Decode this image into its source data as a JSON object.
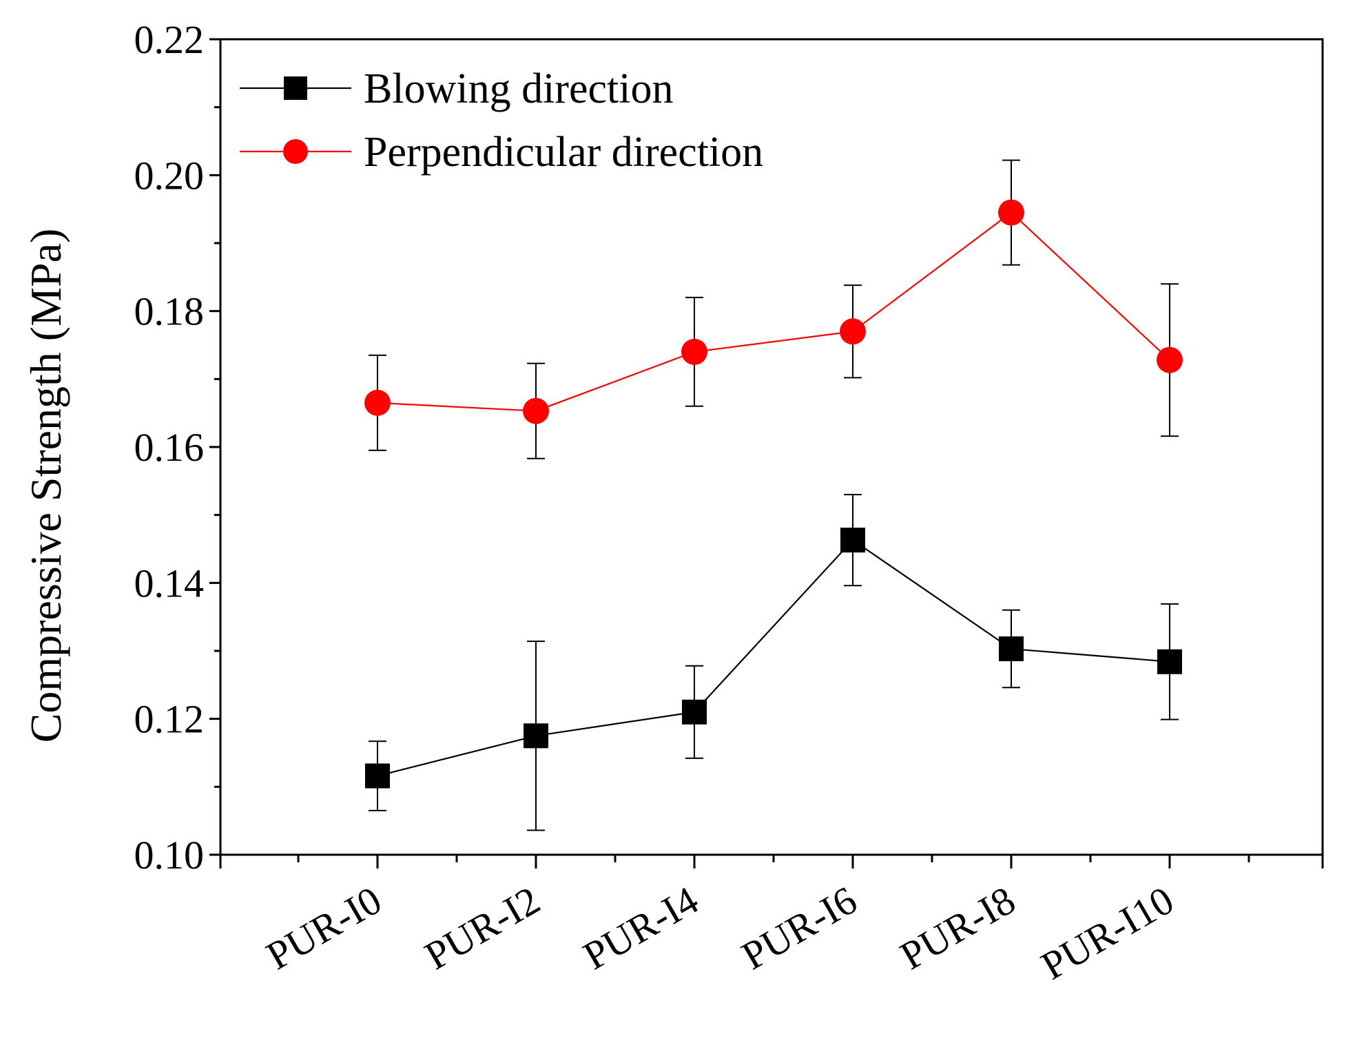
{
  "chart_data": {
    "type": "line",
    "ylabel": "Compressive Strength (MPa)",
    "xlabel": "",
    "categories": [
      "PUR-I0",
      "PUR-I2",
      "PUR-I4",
      "PUR-I6",
      "PUR-I8",
      "PUR-I10"
    ],
    "ylim": [
      0.1,
      0.22
    ],
    "y_ticks": [
      "0.10",
      "0.12",
      "0.14",
      "0.16",
      "0.18",
      "0.20",
      "0.22"
    ],
    "grid": false,
    "legend_position": "top-left",
    "series": [
      {
        "name": "Blowing direction",
        "color": "#000000",
        "marker": "square",
        "values": [
          0.1116,
          0.1175,
          0.121,
          0.1463,
          0.1303,
          0.1284
        ],
        "error": [
          0.0051,
          0.0139,
          0.0068,
          0.0067,
          0.0057,
          0.0085
        ]
      },
      {
        "name": "Perpendicular direction",
        "color": "#ff0000",
        "marker": "circle",
        "values": [
          0.1665,
          0.1653,
          0.174,
          0.177,
          0.1945,
          0.1728
        ],
        "error": [
          0.007,
          0.007,
          0.008,
          0.0068,
          0.0077,
          0.0112
        ]
      }
    ]
  }
}
